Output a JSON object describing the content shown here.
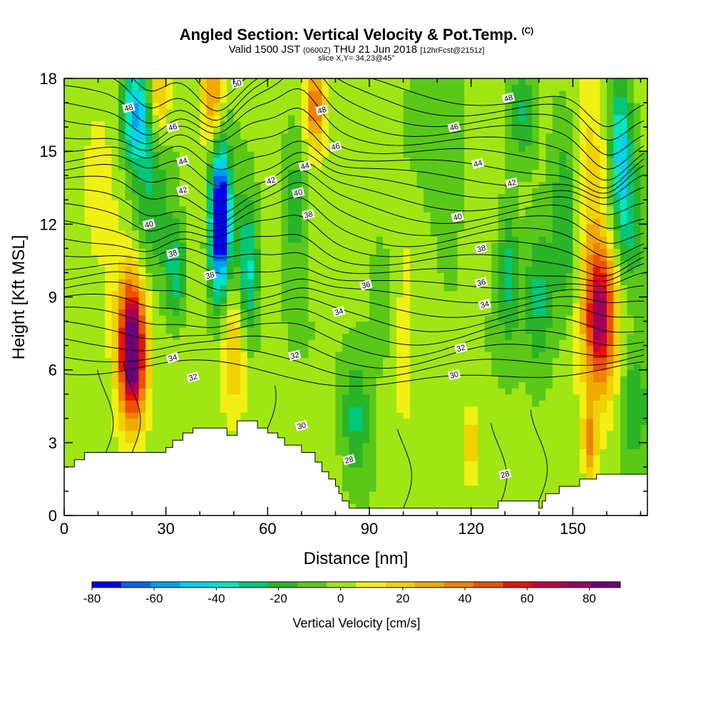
{
  "chart_data": {
    "type": "heatmap",
    "title": "Angled Section: Vertical Velocity & Pot.Temp.",
    "title_units": "(C)",
    "subtitle_main": "Valid 1500 JST",
    "subtitle_utc": "(0600Z)",
    "subtitle_date": "THU 21 Jun 2018",
    "subtitle_forecast": "[12hrFcst@2151z]",
    "slice_label": "slice X,Y= 34,23@45°",
    "xlabel": "Distance [nm]",
    "ylabel": "Height [Kft MSL]",
    "xlim": [
      0,
      172
    ],
    "ylim": [
      0,
      18
    ],
    "x_ticks": [
      0,
      30,
      60,
      90,
      120,
      150
    ],
    "y_ticks": [
      0,
      3,
      6,
      9,
      12,
      15,
      18
    ],
    "colorbar": {
      "title": "Vertical Velocity [cm/s]",
      "ticks": [
        -80,
        -60,
        -40,
        -20,
        0,
        20,
        40,
        60,
        80
      ],
      "bins": [
        -80,
        -70,
        -60,
        -50,
        -40,
        -30,
        -20,
        -10,
        0,
        10,
        20,
        30,
        40,
        50,
        60,
        70,
        80,
        90
      ],
      "colors": [
        "#0000f0",
        "#0064f0",
        "#00a0f0",
        "#00d2f0",
        "#00e6c0",
        "#00c878",
        "#2ab428",
        "#5ac818",
        "#a0e614",
        "#f0f014",
        "#f0d200",
        "#f0aa00",
        "#f08200",
        "#f05000",
        "#e61400",
        "#c8003c",
        "#a0005a",
        "#6e0078"
      ]
    },
    "vertical_velocity_cells": [
      {
        "x": 20,
        "y": 6.8,
        "sx": 3.5,
        "sy": 2.5,
        "w": 90
      },
      {
        "x": 20,
        "y": 7.5,
        "sx": 6,
        "sy": 4,
        "w": 30
      },
      {
        "x": 158,
        "y": 8.3,
        "sx": 4,
        "sy": 2.5,
        "w": 65
      },
      {
        "x": 158,
        "y": 7.5,
        "sx": 7,
        "sy": 4.5,
        "w": 20
      },
      {
        "x": 46,
        "y": 12.3,
        "sx": 2.5,
        "sy": 2.5,
        "w": -75
      },
      {
        "x": 46,
        "y": 11.5,
        "sx": 4,
        "sy": 4,
        "w": -35
      },
      {
        "x": 54,
        "y": 10,
        "sx": 3,
        "sy": 3,
        "w": -40
      },
      {
        "x": 21,
        "y": 16.5,
        "sx": 4,
        "sy": 2,
        "w": -50
      },
      {
        "x": 25,
        "y": 13,
        "sx": 6,
        "sy": 4,
        "w": -25
      },
      {
        "x": 33,
        "y": 10,
        "sx": 3,
        "sy": 2,
        "w": -30
      },
      {
        "x": 164,
        "y": 15,
        "sx": 3,
        "sy": 3,
        "w": -45
      },
      {
        "x": 167,
        "y": 12,
        "sx": 4,
        "sy": 3,
        "w": -25
      },
      {
        "x": 135,
        "y": 16.5,
        "sx": 4,
        "sy": 2,
        "w": -25
      },
      {
        "x": 148,
        "y": 12,
        "sx": 4,
        "sy": 4,
        "w": -25
      },
      {
        "x": 140,
        "y": 9,
        "sx": 4,
        "sy": 3,
        "w": -25
      },
      {
        "x": 131,
        "y": 10,
        "sx": 3,
        "sy": 3,
        "w": -25
      },
      {
        "x": 86,
        "y": 4,
        "sx": 4,
        "sy": 2.5,
        "w": -25
      },
      {
        "x": 110,
        "y": 14,
        "sx": 8,
        "sy": 5,
        "w": -15
      },
      {
        "x": 68,
        "y": 13,
        "sx": 4,
        "sy": 3,
        "w": -20
      },
      {
        "x": 96,
        "y": 9,
        "sx": 7,
        "sy": 4,
        "w": -10
      },
      {
        "x": 168,
        "y": 4.5,
        "sx": 4,
        "sy": 2.5,
        "w": -25
      },
      {
        "x": 74,
        "y": 17,
        "sx": 3,
        "sy": 2,
        "w": 45
      },
      {
        "x": 44,
        "y": 17.5,
        "sx": 3,
        "sy": 2,
        "w": 40
      },
      {
        "x": 28,
        "y": 17.5,
        "sx": 3,
        "sy": 2,
        "w": 35
      },
      {
        "x": 155,
        "y": 14,
        "sx": 5,
        "sy": 4,
        "w": 25
      },
      {
        "x": 104,
        "y": 12,
        "sx": 10,
        "sy": 3,
        "w": 12
      },
      {
        "x": 100,
        "y": 7,
        "sx": 3,
        "sy": 4,
        "w": 15
      },
      {
        "x": 120,
        "y": 3,
        "sx": 2.5,
        "sy": 1.5,
        "w": 25
      },
      {
        "x": 155,
        "y": 3,
        "sx": 2,
        "sy": 1.5,
        "w": 40
      },
      {
        "x": 50,
        "y": 7,
        "sx": 4,
        "sy": 3,
        "w": 30
      },
      {
        "x": 10,
        "y": 13,
        "sx": 6,
        "sy": 5,
        "w": 8
      },
      {
        "x": 40,
        "y": 14,
        "sx": 5,
        "sy": 4,
        "w": 10
      }
    ],
    "theta_label_positions": [
      {
        "text": "50",
        "x": 51,
        "y": 17.8
      },
      {
        "text": "48",
        "x": 19,
        "y": 16.8
      },
      {
        "text": "48",
        "x": 76,
        "y": 16.7
      },
      {
        "text": "48",
        "x": 131,
        "y": 17.2
      },
      {
        "text": "46",
        "x": 32,
        "y": 16
      },
      {
        "text": "46",
        "x": 80,
        "y": 15.2
      },
      {
        "text": "46",
        "x": 115,
        "y": 16
      },
      {
        "text": "44",
        "x": 35,
        "y": 14.6
      },
      {
        "text": "44",
        "x": 71,
        "y": 14.4
      },
      {
        "text": "44",
        "x": 122,
        "y": 14.5
      },
      {
        "text": "42",
        "x": 35,
        "y": 13.4
      },
      {
        "text": "42",
        "x": 61,
        "y": 13.8
      },
      {
        "text": "42",
        "x": 132,
        "y": 13.7
      },
      {
        "text": "40",
        "x": 25,
        "y": 12
      },
      {
        "text": "40",
        "x": 69,
        "y": 13.3
      },
      {
        "text": "40",
        "x": 116,
        "y": 12.3
      },
      {
        "text": "38",
        "x": 32,
        "y": 10.8
      },
      {
        "text": "38",
        "x": 72,
        "y": 12.4
      },
      {
        "text": "38",
        "x": 43,
        "y": 9.9
      },
      {
        "text": "38",
        "x": 123,
        "y": 11
      },
      {
        "text": "36",
        "x": 89,
        "y": 9.5
      },
      {
        "text": "36",
        "x": 123,
        "y": 9.6
      },
      {
        "text": "34",
        "x": 81,
        "y": 8.4
      },
      {
        "text": "34",
        "x": 124,
        "y": 8.7
      },
      {
        "text": "34",
        "x": 32,
        "y": 6.5
      },
      {
        "text": "32",
        "x": 68,
        "y": 6.6
      },
      {
        "text": "32",
        "x": 117,
        "y": 6.9
      },
      {
        "text": "32",
        "x": 38,
        "y": 5.7
      },
      {
        "text": "30",
        "x": 115,
        "y": 5.8
      },
      {
        "text": "30",
        "x": 70,
        "y": 3.7
      },
      {
        "text": "28",
        "x": 84,
        "y": 2.3
      },
      {
        "text": "28",
        "x": 130,
        "y": 1.7
      }
    ],
    "theta_lines_left_start": [
      18.1,
      17.6,
      17.1,
      16.6,
      16.1,
      15.6,
      15.1,
      14.6,
      14.1,
      13.6,
      13.1,
      12.6,
      12.1,
      11.6,
      11.1,
      10.6,
      10.1,
      9.6,
      9.1,
      8.6,
      8.1,
      7.6,
      7.1,
      6.6,
      6.1
    ],
    "terrain_profile": [
      [
        0,
        2.0
      ],
      [
        3,
        2.0
      ],
      [
        3,
        2.3
      ],
      [
        6,
        2.3
      ],
      [
        6,
        2.6
      ],
      [
        30,
        2.6
      ],
      [
        30,
        2.8
      ],
      [
        32,
        2.8
      ],
      [
        32,
        3.1
      ],
      [
        35,
        3.1
      ],
      [
        35,
        3.4
      ],
      [
        38,
        3.4
      ],
      [
        38,
        3.6
      ],
      [
        48,
        3.6
      ],
      [
        48,
        3.3
      ],
      [
        51,
        3.3
      ],
      [
        51,
        3.9
      ],
      [
        57,
        3.9
      ],
      [
        57,
        3.6
      ],
      [
        60,
        3.6
      ],
      [
        60,
        3.4
      ],
      [
        63,
        3.4
      ],
      [
        63,
        3.2
      ],
      [
        65,
        3.2
      ],
      [
        65,
        2.9
      ],
      [
        70,
        2.9
      ],
      [
        70,
        2.6
      ],
      [
        74,
        2.6
      ],
      [
        74,
        2.2
      ],
      [
        76,
        2.2
      ],
      [
        76,
        1.8
      ],
      [
        78,
        1.8
      ],
      [
        78,
        1.5
      ],
      [
        80,
        1.5
      ],
      [
        80,
        1.2
      ],
      [
        81,
        1.2
      ],
      [
        81,
        0.9
      ],
      [
        82,
        0.9
      ],
      [
        82,
        0.6
      ],
      [
        84,
        0.6
      ],
      [
        84,
        0.3
      ],
      [
        128,
        0.3
      ],
      [
        128,
        0.6
      ],
      [
        140,
        0.6
      ],
      [
        140,
        0.3
      ],
      [
        141,
        0.3
      ],
      [
        141,
        0.6
      ],
      [
        142,
        0.6
      ],
      [
        142,
        0.9
      ],
      [
        146,
        0.9
      ],
      [
        146,
        1.2
      ],
      [
        152,
        1.2
      ],
      [
        152,
        1.5
      ],
      [
        157,
        1.5
      ],
      [
        157,
        1.7
      ],
      [
        172,
        1.7
      ]
    ]
  }
}
